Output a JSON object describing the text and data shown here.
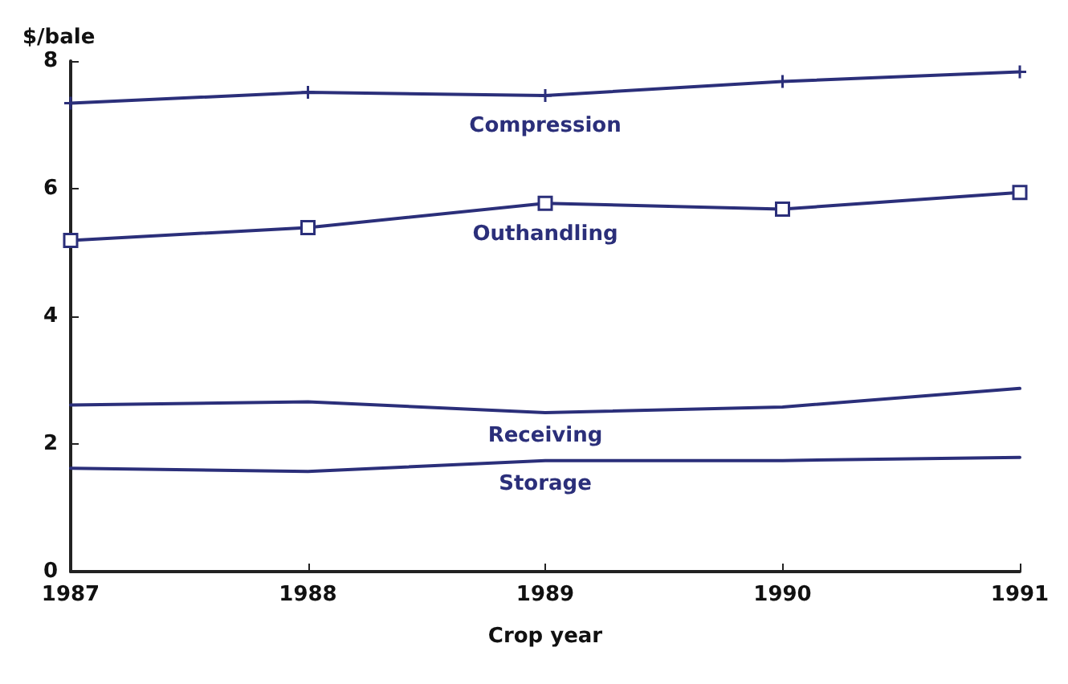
{
  "chart_data": {
    "type": "line",
    "ylabel": "$/bale",
    "xlabel": "Crop year",
    "x": [
      1987,
      1988,
      1989,
      1990,
      1991
    ],
    "xlim": [
      1987,
      1991
    ],
    "xticks": [
      1987,
      1988,
      1989,
      1990,
      1991
    ],
    "ylim": [
      0,
      8
    ],
    "yticks": [
      0,
      2,
      4,
      6,
      8
    ],
    "grid": false,
    "legend": false,
    "series": [
      {
        "name": "Compression",
        "color": "#2b2f7a",
        "marker": "cross",
        "values": [
          7.34,
          7.51,
          7.46,
          7.68,
          7.83
        ]
      },
      {
        "name": "Outhandling",
        "color": "#2b2f7a",
        "marker": "square",
        "values": [
          5.19,
          5.39,
          5.77,
          5.68,
          5.94
        ]
      },
      {
        "name": "Receiving",
        "color": "#2b2f7a",
        "marker": "none",
        "values": [
          2.61,
          2.66,
          2.49,
          2.58,
          2.87
        ]
      },
      {
        "name": "Storage",
        "color": "#2b2f7a",
        "marker": "none",
        "values": [
          1.62,
          1.57,
          1.74,
          1.74,
          1.79
        ]
      }
    ]
  }
}
